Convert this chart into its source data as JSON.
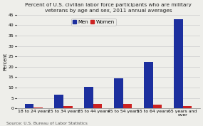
{
  "title": "Percent of U.S. civilian labor force participants who are military\nveterans by age and sex, 2011 annual averages",
  "categories": [
    "18 to 24 years",
    "25 to 34 years",
    "35 to 44 years",
    "45 to 54 years",
    "55 to 64 years",
    "65 years and\nover"
  ],
  "men_values": [
    2.0,
    6.5,
    10.5,
    14.5,
    22.5,
    43.0
  ],
  "women_values": [
    0.4,
    1.2,
    2.1,
    2.1,
    1.8,
    1.0
  ],
  "men_color": "#1C2F9E",
  "women_color": "#CC2222",
  "ylabel": "Percent",
  "ylim": [
    0,
    45
  ],
  "yticks": [
    0,
    5,
    10,
    15,
    20,
    25,
    30,
    35,
    40,
    45
  ],
  "source": "Source: U.S. Bureau of Labor Statistics",
  "title_fontsize": 5.3,
  "axis_label_fontsize": 4.8,
  "tick_fontsize": 4.4,
  "legend_fontsize": 5.0,
  "source_fontsize": 4.2,
  "background_color": "#eeeeea"
}
